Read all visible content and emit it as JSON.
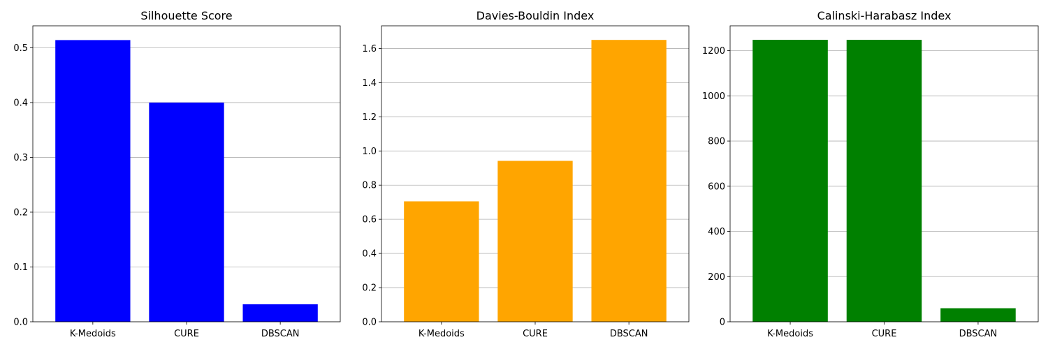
{
  "chart_data": [
    {
      "type": "bar",
      "title": "Silhouette Score",
      "categories": [
        "K-Medoids",
        "CURE",
        "DBSCAN"
      ],
      "values": [
        0.514,
        0.4,
        0.032
      ],
      "color": "#0000ff",
      "ylim": [
        0,
        0.54
      ],
      "yticks": [
        0.0,
        0.1,
        0.2,
        0.3,
        0.4,
        0.5
      ],
      "ytick_decimals": 1,
      "grid": "y"
    },
    {
      "type": "bar",
      "title": "Davies-Bouldin Index",
      "categories": [
        "K-Medoids",
        "CURE",
        "DBSCAN"
      ],
      "values": [
        0.705,
        0.942,
        1.65
      ],
      "color": "#ffa500",
      "ylim": [
        0,
        1.7325
      ],
      "yticks": [
        0.0,
        0.2,
        0.4,
        0.6,
        0.8,
        1.0,
        1.2,
        1.4,
        1.6
      ],
      "ytick_decimals": 1,
      "grid": "y"
    },
    {
      "type": "bar",
      "title": "Calinski-Harabasz Index",
      "categories": [
        "K-Medoids",
        "CURE",
        "DBSCAN"
      ],
      "values": [
        1248,
        1248,
        60
      ],
      "color": "#008000",
      "ylim": [
        0,
        1310
      ],
      "yticks": [
        0,
        200,
        400,
        600,
        800,
        1000,
        1200
      ],
      "ytick_decimals": 0,
      "grid": "y"
    }
  ]
}
